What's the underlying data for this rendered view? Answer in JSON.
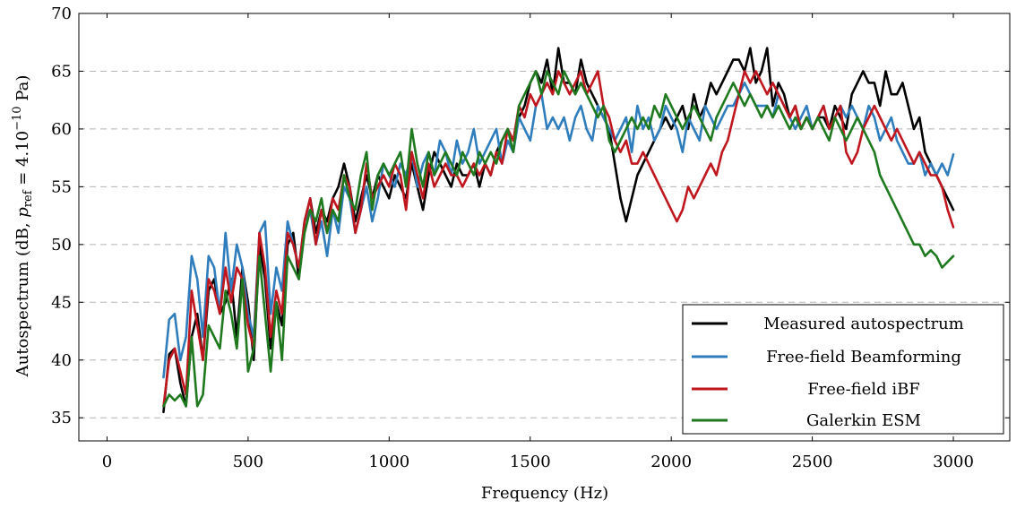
{
  "chart_data": {
    "type": "line",
    "xlabel": "Frequency (Hz)",
    "ylabel": {
      "prefix": "Autospectrum (dB, ",
      "symbol": "p",
      "symbol_sub": "ref",
      "middle": " = 4.10",
      "exponent": "−10",
      "suffix": " Pa)"
    },
    "xlim": [
      -100,
      3200
    ],
    "ylim": [
      33,
      70
    ],
    "xticks": [
      "0",
      "500",
      "1000",
      "1500",
      "2000",
      "2500",
      "3000"
    ],
    "xtick_values": [
      0,
      500,
      1000,
      1500,
      2000,
      2500,
      3000
    ],
    "yticks": [
      "35",
      "40",
      "45",
      "50",
      "55",
      "60",
      "65",
      "70"
    ],
    "ytick_values": [
      35,
      40,
      45,
      50,
      55,
      60,
      65,
      70
    ],
    "grid": "horizontal dashed",
    "legend_position": "bottom-right",
    "series": [
      {
        "name": "Measured autospectrum",
        "color": "#000000",
        "x": [
          200,
          220,
          240,
          260,
          280,
          300,
          320,
          340,
          360,
          380,
          400,
          420,
          440,
          460,
          480,
          500,
          520,
          540,
          560,
          580,
          600,
          620,
          640,
          660,
          680,
          700,
          720,
          740,
          760,
          780,
          800,
          820,
          840,
          860,
          880,
          900,
          920,
          940,
          960,
          980,
          1000,
          1020,
          1040,
          1060,
          1080,
          1100,
          1120,
          1140,
          1160,
          1180,
          1200,
          1220,
          1240,
          1260,
          1280,
          1300,
          1320,
          1340,
          1360,
          1380,
          1400,
          1420,
          1440,
          1460,
          1480,
          1500,
          1520,
          1540,
          1560,
          1580,
          1600,
          1620,
          1640,
          1660,
          1680,
          1700,
          1720,
          1740,
          1760,
          1780,
          1800,
          1820,
          1840,
          1860,
          1880,
          1900,
          1920,
          1940,
          1960,
          1980,
          2000,
          2020,
          2040,
          2060,
          2080,
          2100,
          2120,
          2140,
          2160,
          2180,
          2200,
          2220,
          2240,
          2260,
          2280,
          2300,
          2320,
          2340,
          2360,
          2380,
          2400,
          2420,
          2440,
          2460,
          2480,
          2500,
          2520,
          2540,
          2560,
          2580,
          2600,
          2620,
          2640,
          2660,
          2680,
          2700,
          2720,
          2740,
          2760,
          2780,
          2800,
          2820,
          2840,
          2860,
          2880,
          2900,
          2920,
          2940,
          2960,
          2980,
          3000
        ],
        "y": [
          35.5,
          40.5,
          41,
          38,
          36,
          42,
          44,
          40,
          46,
          47,
          44,
          45,
          47,
          42,
          48,
          45,
          40,
          50,
          47,
          41,
          45,
          43,
          50,
          51,
          47,
          52,
          54,
          51,
          53,
          52,
          54,
          55,
          57,
          55,
          52,
          54,
          56,
          54,
          56,
          55,
          54,
          56,
          55,
          54,
          57,
          55,
          53,
          56,
          58,
          57,
          56,
          55,
          57,
          56,
          56,
          57,
          55,
          57,
          56,
          58,
          59,
          60,
          59,
          61,
          62,
          64,
          65,
          64,
          66,
          63,
          67,
          64,
          64,
          63,
          66,
          64,
          63,
          62,
          61,
          60,
          57,
          54,
          52,
          54,
          56,
          57,
          58,
          59,
          60,
          61,
          60,
          61,
          62,
          60,
          63,
          61,
          62,
          64,
          63,
          64,
          65,
          66,
          66,
          65,
          67,
          64,
          65,
          67,
          62,
          64,
          63,
          61,
          62,
          60,
          61,
          60,
          61,
          61,
          60,
          62,
          61,
          60,
          63,
          64,
          65,
          64,
          64,
          62,
          65,
          63,
          63,
          64,
          62,
          60,
          61,
          58,
          57,
          56,
          55,
          54,
          53
        ],
        "yrandom_note": ""
      },
      {
        "name": "Free-field Beamforming",
        "color": "#2f7dbd",
        "x": [
          200,
          220,
          240,
          260,
          280,
          300,
          320,
          340,
          360,
          380,
          400,
          420,
          440,
          460,
          480,
          500,
          520,
          540,
          560,
          580,
          600,
          620,
          640,
          660,
          680,
          700,
          720,
          740,
          760,
          780,
          800,
          820,
          840,
          860,
          880,
          900,
          920,
          940,
          960,
          980,
          1000,
          1020,
          1040,
          1060,
          1080,
          1100,
          1120,
          1140,
          1160,
          1180,
          1200,
          1220,
          1240,
          1260,
          1280,
          1300,
          1320,
          1340,
          1360,
          1380,
          1400,
          1420,
          1440,
          1460,
          1480,
          1500,
          1520,
          1540,
          1560,
          1580,
          1600,
          1620,
          1640,
          1660,
          1680,
          1700,
          1720,
          1740,
          1760,
          1780,
          1800,
          1820,
          1840,
          1860,
          1880,
          1900,
          1920,
          1940,
          1960,
          1980,
          2000,
          2020,
          2040,
          2060,
          2080,
          2100,
          2120,
          2140,
          2160,
          2180,
          2200,
          2220,
          2240,
          2260,
          2280,
          2300,
          2320,
          2340,
          2360,
          2380,
          2400,
          2420,
          2440,
          2460,
          2480,
          2500,
          2520,
          2540,
          2560,
          2580,
          2600,
          2620,
          2640,
          2660,
          2680,
          2700,
          2720,
          2740,
          2760,
          2780,
          2800,
          2820,
          2840,
          2860,
          2880,
          2900,
          2920,
          2940,
          2960,
          2980,
          3000
        ],
        "y": [
          38.5,
          43.5,
          44,
          40,
          42,
          49,
          47,
          42,
          49,
          48,
          44,
          51,
          46,
          50,
          48,
          44,
          42,
          51,
          52,
          44,
          48,
          46,
          52,
          50,
          48,
          52,
          53,
          50,
          52,
          49,
          53,
          51,
          55,
          54,
          51,
          53,
          55,
          52,
          54,
          57,
          56,
          55,
          57,
          56,
          58,
          55,
          57,
          58,
          56,
          59,
          58,
          56,
          59,
          57,
          58,
          60,
          57,
          58,
          59,
          60,
          57,
          59,
          58,
          61,
          60,
          59,
          62,
          63,
          60,
          61,
          60,
          61,
          59,
          61,
          62,
          60,
          59,
          62,
          61,
          60,
          59,
          60,
          61,
          58,
          62,
          60,
          61,
          59,
          60,
          62,
          61,
          60,
          58,
          61,
          60,
          59,
          62,
          61,
          60,
          61,
          62,
          62,
          63,
          64,
          63,
          62,
          62,
          62,
          61,
          63,
          62,
          61,
          60,
          61,
          62,
          60,
          61,
          62,
          60,
          61,
          62,
          61,
          62,
          61,
          60,
          62,
          61,
          59,
          60,
          61,
          59,
          58,
          57,
          57,
          58,
          56,
          57,
          56,
          57,
          56,
          57.8
        ],
        "yrandom_note": ""
      },
      {
        "name": "Free-field iBF",
        "color": "#c0161e",
        "x": [
          200,
          220,
          240,
          260,
          280,
          300,
          320,
          340,
          360,
          380,
          400,
          420,
          440,
          460,
          480,
          500,
          520,
          540,
          560,
          580,
          600,
          620,
          640,
          660,
          680,
          700,
          720,
          740,
          760,
          780,
          800,
          820,
          840,
          860,
          880,
          900,
          920,
          940,
          960,
          980,
          1000,
          1020,
          1040,
          1060,
          1080,
          1100,
          1120,
          1140,
          1160,
          1180,
          1200,
          1220,
          1240,
          1260,
          1280,
          1300,
          1320,
          1340,
          1360,
          1380,
          1400,
          1420,
          1440,
          1460,
          1480,
          1500,
          1520,
          1540,
          1560,
          1580,
          1600,
          1620,
          1640,
          1660,
          1680,
          1700,
          1720,
          1740,
          1760,
          1780,
          1800,
          1820,
          1840,
          1860,
          1880,
          1900,
          1920,
          1940,
          1960,
          1980,
          2000,
          2020,
          2040,
          2060,
          2080,
          2100,
          2120,
          2140,
          2160,
          2180,
          2200,
          2220,
          2240,
          2260,
          2280,
          2300,
          2320,
          2340,
          2360,
          2380,
          2400,
          2420,
          2440,
          2460,
          2480,
          2500,
          2520,
          2540,
          2560,
          2580,
          2600,
          2620,
          2640,
          2660,
          2680,
          2700,
          2720,
          2740,
          2760,
          2780,
          2800,
          2820,
          2840,
          2860,
          2880,
          2900,
          2920,
          2940,
          2960,
          2980,
          3000
        ],
        "y": [
          36,
          40,
          41,
          39,
          37,
          46,
          43,
          40,
          47,
          46,
          44,
          48,
          45,
          48,
          47,
          43,
          41,
          51,
          48,
          42,
          46,
          44,
          51,
          50,
          48,
          52,
          54,
          50,
          53,
          51,
          54,
          53,
          56,
          55,
          51,
          53,
          57,
          54,
          55,
          56,
          55,
          57,
          56,
          53,
          58,
          56,
          54,
          57,
          55,
          56,
          57,
          56,
          56,
          55,
          56,
          57,
          56,
          57,
          56,
          58,
          57,
          60,
          59,
          62,
          61,
          63,
          62,
          63,
          64,
          63,
          65,
          64,
          63,
          64,
          65,
          63,
          64,
          65,
          62,
          61,
          59,
          58,
          59,
          57,
          57,
          58,
          57,
          56,
          55,
          54,
          53,
          52,
          53,
          55,
          54,
          55,
          56,
          57,
          56,
          58,
          59,
          61,
          63,
          65,
          64,
          65,
          64,
          63,
          64,
          63,
          62,
          61,
          62,
          60,
          61,
          60,
          61,
          62,
          60,
          61,
          62,
          58,
          57,
          58,
          60,
          61,
          62,
          61,
          60,
          59,
          60,
          59,
          58,
          57,
          58,
          57,
          56,
          56,
          55,
          53,
          51.5
        ],
        "yrandom_note": ""
      },
      {
        "name": "Galerkin ESM",
        "color": "#1f7a1f",
        "x": [
          200,
          220,
          240,
          260,
          280,
          300,
          320,
          340,
          360,
          380,
          400,
          420,
          440,
          460,
          480,
          500,
          520,
          540,
          560,
          580,
          600,
          620,
          640,
          660,
          680,
          700,
          720,
          740,
          760,
          780,
          800,
          820,
          840,
          860,
          880,
          900,
          920,
          940,
          960,
          980,
          1000,
          1020,
          1040,
          1060,
          1080,
          1100,
          1120,
          1140,
          1160,
          1180,
          1200,
          1220,
          1240,
          1260,
          1280,
          1300,
          1320,
          1340,
          1360,
          1380,
          1400,
          1420,
          1440,
          1460,
          1480,
          1500,
          1520,
          1540,
          1560,
          1580,
          1600,
          1620,
          1640,
          1660,
          1680,
          1700,
          1720,
          1740,
          1760,
          1780,
          1800,
          1820,
          1840,
          1860,
          1880,
          1900,
          1920,
          1940,
          1960,
          1980,
          2000,
          2020,
          2040,
          2060,
          2080,
          2100,
          2120,
          2140,
          2160,
          2180,
          2200,
          2220,
          2240,
          2260,
          2280,
          2300,
          2320,
          2340,
          2360,
          2380,
          2400,
          2420,
          2440,
          2460,
          2480,
          2500,
          2520,
          2540,
          2560,
          2580,
          2600,
          2620,
          2640,
          2660,
          2680,
          2700,
          2720,
          2740,
          2760,
          2780,
          2800,
          2820,
          2840,
          2860,
          2880,
          2900,
          2920,
          2940,
          2960,
          2980,
          3000
        ],
        "y": [
          36,
          37,
          36.5,
          37,
          36,
          42,
          36,
          37,
          43,
          42,
          41,
          46,
          44,
          41,
          47,
          39,
          41,
          49,
          44,
          39,
          45,
          40,
          49,
          48,
          47,
          51,
          53,
          52,
          54,
          51,
          53,
          52,
          56,
          54,
          53,
          56,
          58,
          53,
          56,
          57,
          56,
          57,
          58,
          55,
          60,
          57,
          55,
          58,
          56,
          57,
          58,
          57,
          56,
          58,
          57,
          56,
          58,
          57,
          58,
          57,
          59,
          60,
          58,
          62,
          63,
          64,
          65,
          63,
          65,
          64,
          63,
          65,
          64,
          63,
          64,
          63,
          62,
          61,
          62,
          59,
          58,
          59,
          60,
          61,
          60,
          61,
          60,
          62,
          61,
          63,
          62,
          61,
          60,
          61,
          62,
          61,
          60,
          59,
          61,
          62,
          63,
          64,
          63,
          62,
          63,
          62,
          61,
          62,
          61,
          62,
          61,
          60,
          61,
          60,
          61,
          60,
          61,
          60,
          59,
          61,
          60,
          59,
          60,
          61,
          60,
          59,
          58,
          56,
          55,
          54,
          53,
          52,
          51,
          50,
          50,
          49,
          49.5,
          49,
          48,
          48.5,
          49
        ],
        "yrandom_note": ""
      }
    ]
  }
}
